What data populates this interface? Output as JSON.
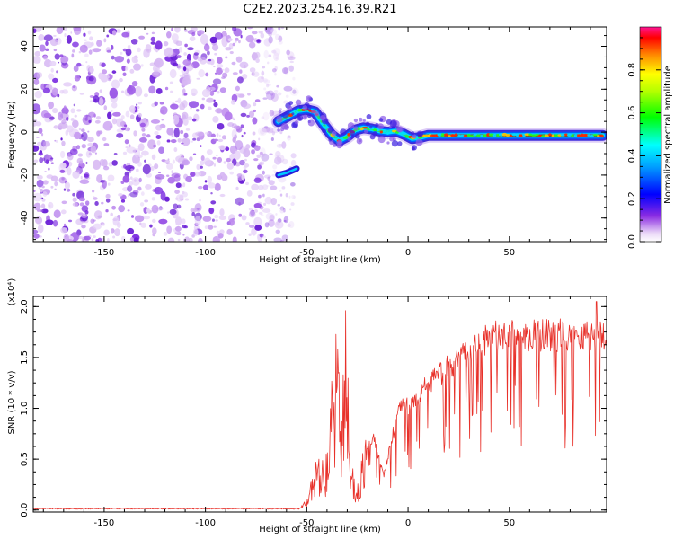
{
  "figure": {
    "title": "C2E2.2023.254.16.39.R21"
  },
  "chart_data": [
    {
      "type": "heatmap",
      "xlabel": "Height of straight line (km)",
      "ylabel": "Frequency (Hz)",
      "xlim": [
        -185,
        98
      ],
      "ylim": [
        -51,
        49
      ],
      "xticks": [
        -150,
        -100,
        -50,
        0,
        50
      ],
      "yticks": [
        -40,
        -20,
        0,
        20,
        40
      ],
      "colorbar": {
        "label": "Normalized spectral amplitude",
        "range": [
          0,
          1
        ],
        "ticks": [
          0.0,
          0.2,
          0.4,
          0.6,
          0.8
        ]
      },
      "noise_region_x": [
        -185,
        -62
      ],
      "ridge": {
        "x": [
          -64,
          -58,
          -54,
          -50,
          -46,
          -42,
          -38,
          -34,
          -30,
          -26,
          -22,
          -18,
          -14,
          -10,
          -6,
          -2,
          2,
          6,
          10,
          15,
          20,
          30,
          40,
          50,
          60,
          70,
          80,
          90,
          96
        ],
        "y": [
          5,
          8,
          10,
          10.5,
          9.5,
          4,
          -1,
          -4,
          -2,
          1,
          2,
          1.5,
          0.5,
          0,
          0.5,
          -1,
          -3,
          -2.5,
          -1.5,
          -1.5,
          -1.5,
          -1.5,
          -1.5,
          -1.5,
          -1.5,
          -1.5,
          -1.5,
          -1.5,
          -1.5
        ]
      },
      "secondary_band": {
        "x": [
          -64,
          -60,
          -55
        ],
        "y": [
          -20,
          -19,
          -17
        ]
      }
    },
    {
      "type": "line",
      "xlabel": "Height of straight line (km)",
      "ylabel": "SNR (10 * v/v)",
      "scale_label": "(x10⁴)",
      "xlim": [
        -185,
        98
      ],
      "ylim": [
        -0.02,
        2.1
      ],
      "xticks": [
        -150,
        -100,
        -50,
        0,
        50
      ],
      "yticks": [
        0.0,
        0.5,
        1.0,
        1.5,
        2.0
      ],
      "series": [
        {
          "color": "#e8312a",
          "profile_x": [
            -185,
            -55,
            -50,
            -47,
            -44,
            -40,
            -37,
            -35,
            -33,
            -31,
            -28,
            -25,
            -21,
            -17,
            -12,
            -8,
            -4,
            0,
            5,
            10,
            15,
            20,
            25,
            30,
            40,
            50,
            60,
            70,
            80,
            90,
            98
          ],
          "profile_y": [
            0.0,
            0.01,
            0.08,
            0.3,
            0.5,
            0.45,
            1.2,
            1.75,
            0.7,
            1.7,
            0.4,
            0.2,
            0.6,
            0.75,
            0.35,
            0.75,
            1.05,
            1.1,
            1.2,
            1.3,
            1.4,
            1.5,
            1.55,
            1.65,
            1.8,
            1.82,
            1.82,
            1.83,
            1.83,
            1.84,
            1.8
          ]
        }
      ]
    }
  ]
}
